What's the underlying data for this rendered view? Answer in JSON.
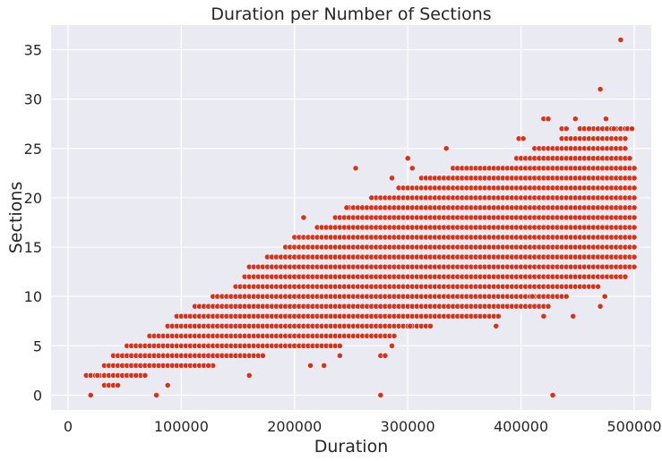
{
  "chart_data": {
    "type": "scatter",
    "title": "Duration per Number of Sections",
    "xlabel": "Duration",
    "ylabel": "Sections",
    "xlim": [
      -15000,
      515000
    ],
    "ylim": [
      -1.5,
      37.5
    ],
    "xticks": [
      0,
      100000,
      200000,
      300000,
      400000,
      500000
    ],
    "yticks": [
      0,
      5,
      10,
      15,
      20,
      25,
      30,
      35
    ],
    "grid": true,
    "legend": "none",
    "colors": {
      "point": "#d9321a",
      "point_edge": "#ffffff",
      "plot_bg": "#eaeaf2",
      "grid": "#ffffff"
    },
    "bands": [
      {
        "y": 1,
        "x": [
          30000,
          45000
        ]
      },
      {
        "y": 2,
        "x": [
          15000,
          70000
        ]
      },
      {
        "y": 3,
        "x": [
          30000,
          130000
        ]
      },
      {
        "y": 4,
        "x": [
          40000,
          175000
        ]
      },
      {
        "y": 5,
        "x": [
          50000,
          240000
        ]
      },
      {
        "y": 6,
        "x": [
          70000,
          290000
        ]
      },
      {
        "y": 7,
        "x": [
          85000,
          320000
        ]
      },
      {
        "y": 8,
        "x": [
          95000,
          380000
        ]
      },
      {
        "y": 9,
        "x": [
          110000,
          420000
        ]
      },
      {
        "y": 10,
        "x": [
          125000,
          440000
        ]
      },
      {
        "y": 11,
        "x": [
          145000,
          470000
        ]
      },
      {
        "y": 12,
        "x": [
          155000,
          495000
        ]
      },
      {
        "y": 13,
        "x": [
          160000,
          500000
        ]
      },
      {
        "y": 14,
        "x": [
          175000,
          500000
        ]
      },
      {
        "y": 15,
        "x": [
          190000,
          500000
        ]
      },
      {
        "y": 16,
        "x": [
          200000,
          500000
        ]
      },
      {
        "y": 17,
        "x": [
          220000,
          500000
        ]
      },
      {
        "y": 18,
        "x": [
          235000,
          500000
        ]
      },
      {
        "y": 19,
        "x": [
          245000,
          500000
        ]
      },
      {
        "y": 20,
        "x": [
          265000,
          500000
        ]
      },
      {
        "y": 21,
        "x": [
          290000,
          500000
        ]
      },
      {
        "y": 22,
        "x": [
          310000,
          500000
        ]
      },
      {
        "y": 23,
        "x": [
          340000,
          500000
        ]
      },
      {
        "y": 24,
        "x": [
          395000,
          498000
        ]
      },
      {
        "y": 25,
        "x": [
          410000,
          495000
        ]
      },
      {
        "y": 26,
        "x": [
          435000,
          495000
        ]
      },
      {
        "y": 27,
        "x": [
          450000,
          497000
        ]
      }
    ],
    "points": [
      [
        20000,
        0
      ],
      [
        78000,
        0
      ],
      [
        276000,
        0
      ],
      [
        428000,
        0
      ],
      [
        88000,
        1
      ],
      [
        26000,
        2
      ],
      [
        60000,
        2
      ],
      [
        160000,
        2
      ],
      [
        124000,
        3
      ],
      [
        226000,
        3
      ],
      [
        214000,
        3
      ],
      [
        276000,
        4
      ],
      [
        280000,
        4
      ],
      [
        240000,
        4
      ],
      [
        286000,
        5
      ],
      [
        302000,
        7
      ],
      [
        316000,
        8
      ],
      [
        378000,
        7
      ],
      [
        420000,
        8
      ],
      [
        446000,
        8
      ],
      [
        410000,
        10
      ],
      [
        424000,
        9
      ],
      [
        470000,
        9
      ],
      [
        474000,
        10
      ],
      [
        208000,
        18
      ],
      [
        246000,
        19
      ],
      [
        268000,
        20
      ],
      [
        286000,
        22
      ],
      [
        300000,
        24
      ],
      [
        304000,
        23
      ],
      [
        254000,
        23
      ],
      [
        334000,
        25
      ],
      [
        352000,
        23
      ],
      [
        398000,
        26
      ],
      [
        402000,
        26
      ],
      [
        420000,
        28
      ],
      [
        424000,
        28
      ],
      [
        436000,
        27
      ],
      [
        448000,
        28
      ],
      [
        460000,
        27
      ],
      [
        475000,
        28
      ],
      [
        440000,
        27
      ],
      [
        482000,
        27
      ],
      [
        494000,
        27
      ],
      [
        498000,
        27
      ],
      [
        470000,
        31
      ],
      [
        488000,
        36
      ]
    ]
  }
}
